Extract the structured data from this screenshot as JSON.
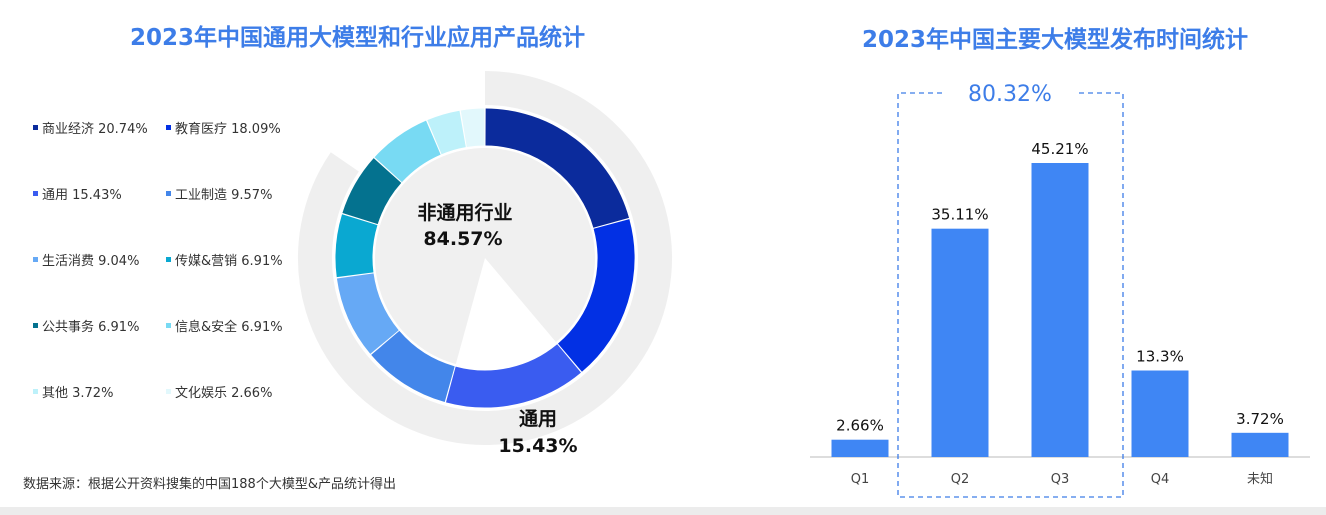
{
  "chart_data": [
    {
      "type": "pie",
      "title": "2023年中国通用大模型和行业应用产品统计",
      "outer_ring": [
        {
          "label": "非通用行业",
          "value": 84.57
        },
        {
          "label": "通用",
          "value": 15.43
        }
      ],
      "series": [
        {
          "name": "商业经济",
          "value": 20.74,
          "value_label": "20.74%",
          "color": "#0b2b9c"
        },
        {
          "name": "教育医疗",
          "value": 18.09,
          "value_label": "18.09%",
          "color": "#0230e4"
        },
        {
          "name": "通用",
          "value": 15.43,
          "value_label": "15.43%",
          "color": "#3a5cf0"
        },
        {
          "name": "工业制造",
          "value": 9.57,
          "value_label": "9.57%",
          "color": "#4386ea"
        },
        {
          "name": "生活消费",
          "value": 9.04,
          "value_label": "9.04%",
          "color": "#66a9f5"
        },
        {
          "name": "传媒&营销",
          "value": 6.91,
          "value_label": "6.91%",
          "color": "#0aa8d1"
        },
        {
          "name": "公共事务",
          "value": 6.91,
          "value_label": "6.91%",
          "color": "#04728f"
        },
        {
          "name": "信息&安全",
          "value": 6.91,
          "value_label": "6.91%",
          "color": "#78daf3"
        },
        {
          "name": "其他",
          "value": 3.72,
          "value_label": "3.72%",
          "color": "#bdf1fa"
        },
        {
          "name": "文化娱乐",
          "value": 2.66,
          "value_label": "2.66%",
          "color": "#e2f8fc"
        }
      ],
      "center_label": {
        "name": "非通用行业",
        "value": "84.57%"
      },
      "callout_label": {
        "name": "通用",
        "value": "15.43%"
      }
    },
    {
      "type": "bar",
      "title": "2023年中国主要大模型发布时间统计",
      "categories": [
        "Q1",
        "Q2",
        "Q3",
        "Q4",
        "未知"
      ],
      "values": [
        2.66,
        35.11,
        45.21,
        13.3,
        3.72
      ],
      "value_labels": [
        "2.66%",
        "35.11%",
        "45.21%",
        "13.3%",
        "3.72%"
      ],
      "ylim": [
        0,
        50
      ],
      "color": "#3f86f4",
      "highlight": {
        "categories": [
          "Q2",
          "Q3"
        ],
        "label": "80.32%"
      }
    }
  ],
  "source_note": "数据来源：根据公开资料搜集的中国188个大模型&产品统计得出"
}
